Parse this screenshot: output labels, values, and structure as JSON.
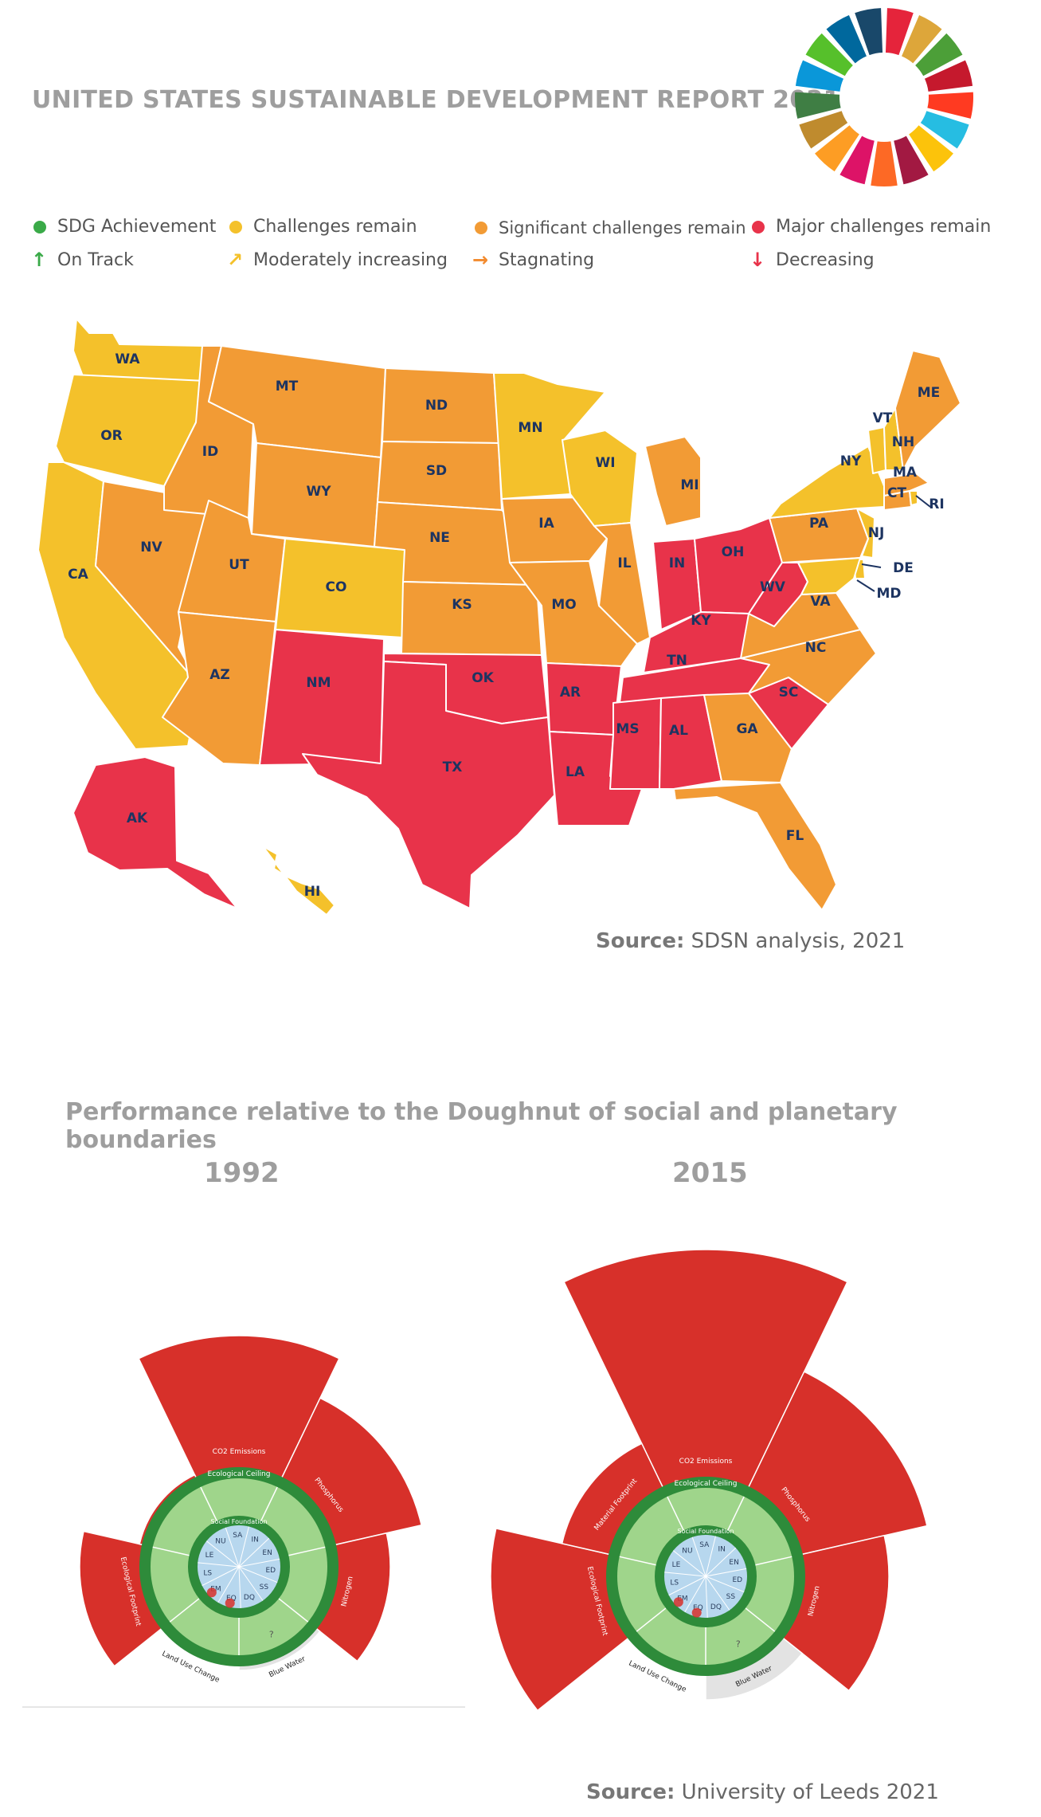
{
  "report_title": "UNITED STATES SUSTAINABLE DEVELOPMENT REPORT 2021",
  "colors": {
    "achievement": "#3aaa48",
    "challenges": "#f4c12b",
    "significant": "#f29b35",
    "major": "#e8334a",
    "state_label": "#1d3461",
    "doughnut_red": "#d7302a",
    "ring_green": "#2e8b3a",
    "inner_green": "#9fd58b",
    "core_blue": "#b7d7ee"
  },
  "legend": {
    "status": [
      {
        "label": "SDG Achievement",
        "color": "#3aaa48"
      },
      {
        "label": "Challenges remain",
        "color": "#f4c12b"
      },
      {
        "label": "Significant challenges remain",
        "color": "#f29b35"
      },
      {
        "label": "Major challenges remain",
        "color": "#e8334a"
      }
    ],
    "trend": [
      {
        "label": "On Track",
        "icon": "arrow-up-icon",
        "glyph": "↑",
        "color": "#3aaa48"
      },
      {
        "label": "Moderately increasing",
        "icon": "arrow-diagonal-icon",
        "glyph": "↗",
        "color": "#f4c12b"
      },
      {
        "label": "Stagnating",
        "icon": "arrow-right-icon",
        "glyph": "→",
        "color": "#f28a2e"
      },
      {
        "label": "Decreasing",
        "icon": "arrow-down-icon",
        "glyph": "↓",
        "color": "#e8334a"
      }
    ]
  },
  "map": {
    "states": [
      {
        "abbr": "WA",
        "status": "challenges"
      },
      {
        "abbr": "OR",
        "status": "challenges"
      },
      {
        "abbr": "CA",
        "status": "challenges"
      },
      {
        "abbr": "NV",
        "status": "significant"
      },
      {
        "abbr": "ID",
        "status": "significant"
      },
      {
        "abbr": "MT",
        "status": "significant"
      },
      {
        "abbr": "WY",
        "status": "significant"
      },
      {
        "abbr": "UT",
        "status": "significant"
      },
      {
        "abbr": "AZ",
        "status": "significant"
      },
      {
        "abbr": "CO",
        "status": "challenges"
      },
      {
        "abbr": "NM",
        "status": "major"
      },
      {
        "abbr": "ND",
        "status": "significant"
      },
      {
        "abbr": "SD",
        "status": "significant"
      },
      {
        "abbr": "NE",
        "status": "significant"
      },
      {
        "abbr": "KS",
        "status": "significant"
      },
      {
        "abbr": "OK",
        "status": "major"
      },
      {
        "abbr": "TX",
        "status": "major"
      },
      {
        "abbr": "MN",
        "status": "challenges"
      },
      {
        "abbr": "IA",
        "status": "significant"
      },
      {
        "abbr": "MO",
        "status": "significant"
      },
      {
        "abbr": "AR",
        "status": "major"
      },
      {
        "abbr": "LA",
        "status": "major"
      },
      {
        "abbr": "WI",
        "status": "challenges"
      },
      {
        "abbr": "IL",
        "status": "significant"
      },
      {
        "abbr": "MI",
        "status": "significant"
      },
      {
        "abbr": "IN",
        "status": "major"
      },
      {
        "abbr": "OH",
        "status": "major"
      },
      {
        "abbr": "KY",
        "status": "major"
      },
      {
        "abbr": "TN",
        "status": "major"
      },
      {
        "abbr": "MS",
        "status": "major"
      },
      {
        "abbr": "AL",
        "status": "major"
      },
      {
        "abbr": "GA",
        "status": "significant"
      },
      {
        "abbr": "FL",
        "status": "significant"
      },
      {
        "abbr": "SC",
        "status": "major"
      },
      {
        "abbr": "NC",
        "status": "significant"
      },
      {
        "abbr": "VA",
        "status": "significant"
      },
      {
        "abbr": "WV",
        "status": "major"
      },
      {
        "abbr": "PA",
        "status": "significant"
      },
      {
        "abbr": "NY",
        "status": "challenges"
      },
      {
        "abbr": "NJ",
        "status": "challenges"
      },
      {
        "abbr": "DE",
        "status": "challenges"
      },
      {
        "abbr": "MD",
        "status": "challenges"
      },
      {
        "abbr": "CT",
        "status": "significant"
      },
      {
        "abbr": "RI",
        "status": "challenges"
      },
      {
        "abbr": "MA",
        "status": "significant"
      },
      {
        "abbr": "VT",
        "status": "challenges"
      },
      {
        "abbr": "NH",
        "status": "challenges"
      },
      {
        "abbr": "ME",
        "status": "significant"
      },
      {
        "abbr": "AK",
        "status": "major"
      },
      {
        "abbr": "HI",
        "status": "challenges"
      }
    ]
  },
  "source1": {
    "label": "Source:",
    "text": "SDSN analysis, 2021"
  },
  "doughnut": {
    "title": "Performance relative to the Doughnut of social and planetary boundaries",
    "ring_labels": {
      "ceiling": "Ecological Ceiling",
      "foundation": "Social Foundation"
    },
    "sector_labels": [
      "CO2 Emissions",
      "Phosphorus",
      "Nitrogen",
      "Blue Water",
      "Land Use Change",
      "Ecological Footprint",
      "Material Footprint"
    ],
    "core_labels": [
      "NU",
      "SA",
      "IN",
      "EN",
      "ED",
      "SS",
      "DQ",
      "EQ",
      "EM",
      "LS",
      "LE"
    ],
    "unknown_mark": "?",
    "panels": [
      {
        "year": "1992"
      },
      {
        "year": "2015"
      }
    ]
  },
  "source2": {
    "label": "Source:",
    "text": "University of Leeds 2021"
  }
}
